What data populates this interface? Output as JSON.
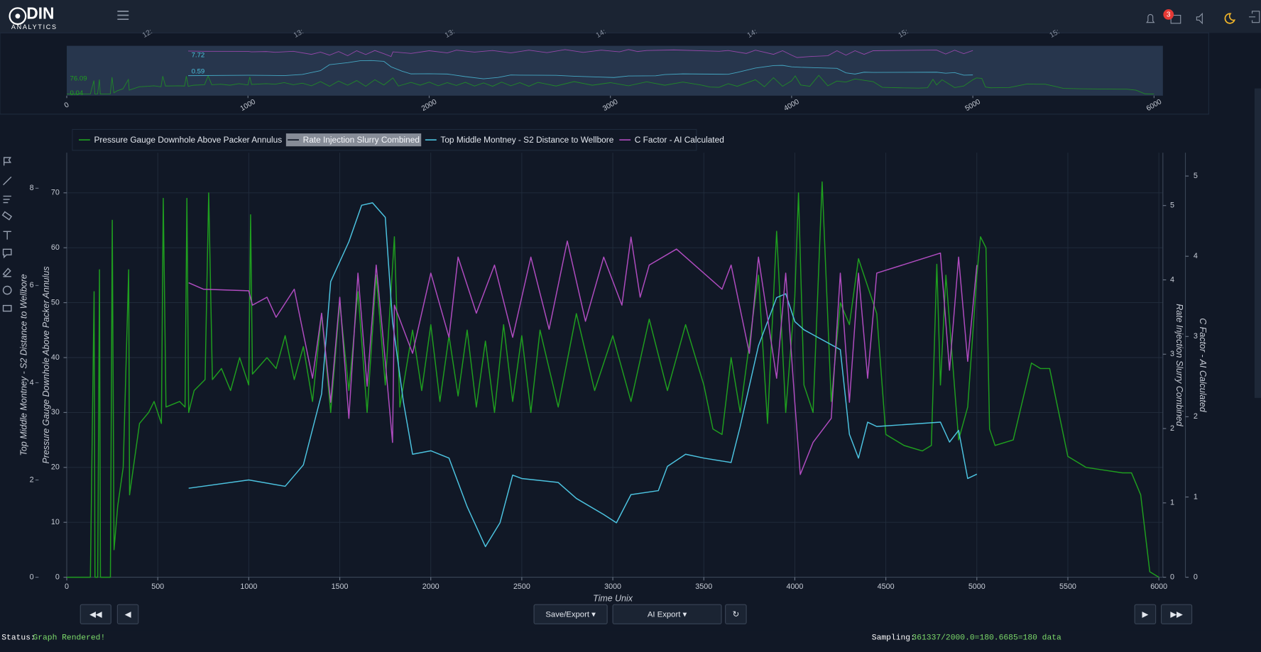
{
  "header": {
    "logo": "DIN",
    "subtitle": "ANALYTICS",
    "badge": "3"
  },
  "navigator": {
    "xlim": [
      0,
      6000
    ],
    "xticks": [
      0,
      1000,
      2000,
      3000,
      4000,
      5000,
      6000
    ],
    "top_labels": [
      "12:",
      "13:",
      "13:",
      "14:",
      "14:",
      "15:",
      "15:"
    ],
    "labels": [
      "7.72",
      "0.59",
      "76.09",
      "0.04"
    ]
  },
  "chart_data": {
    "type": "line",
    "xlabel": "Time Unix",
    "xlim": [
      0,
      6000
    ],
    "xticks": [
      0,
      500,
      1000,
      1500,
      2000,
      2500,
      3000,
      3500,
      4000,
      4500,
      5000,
      5500,
      6000
    ],
    "grid": true,
    "ylabel": "Pressure Gauge Downhole Above Packer Annulus",
    "ylim": [
      0,
      77.3
    ],
    "yticks": [
      0,
      10,
      20,
      30,
      40,
      50,
      60,
      70
    ],
    "y3label": "Top Middle Montney - S2 Distance to Wellbore",
    "y3lim": [
      0,
      8.73
    ],
    "y3ticks": [
      0,
      2,
      4,
      6,
      8
    ],
    "y2label": "Rate Injection Slurry Combined",
    "y2lim": [
      0,
      5.71
    ],
    "y2ticks": [
      0,
      1,
      2,
      3,
      4,
      5
    ],
    "y4label": "C Factor - AI Calculated",
    "y4lim": [
      0,
      5.29
    ],
    "y4ticks": [
      0,
      1,
      2,
      3,
      4,
      5
    ],
    "series": [
      {
        "name": "Pressure Gauge Downhole Above Packer Annulus",
        "color": "#1f9e1f",
        "axis": "y",
        "x": [
          0,
          130,
          150,
          155,
          170,
          180,
          185,
          240,
          250,
          260,
          280,
          310,
          340,
          345,
          400,
          450,
          480,
          520,
          530,
          545,
          620,
          650,
          660,
          670,
          700,
          760,
          780,
          800,
          850,
          900,
          950,
          1000,
          1010,
          1020,
          1100,
          1150,
          1200,
          1250,
          1300,
          1350,
          1400,
          1450,
          1500,
          1550,
          1600,
          1650,
          1700,
          1750,
          1800,
          1830,
          1900,
          1950,
          2000,
          2050,
          2100,
          2150,
          2200,
          2250,
          2300,
          2350,
          2400,
          2450,
          2500,
          2550,
          2600,
          2700,
          2800,
          2900,
          3000,
          3100,
          3200,
          3300,
          3400,
          3500,
          3550,
          3600,
          3650,
          3700,
          3800,
          3850,
          3900,
          3950,
          4000,
          4020,
          4050,
          4100,
          4150,
          4200,
          4250,
          4300,
          4350,
          4450,
          4500,
          4550,
          4600,
          4700,
          4750,
          4780,
          4800,
          4830,
          4900,
          4950,
          5000,
          5020,
          5050,
          5070,
          5100,
          5200,
          5300,
          5350,
          5400,
          5450,
          5500,
          5600,
          5700,
          5800,
          5850,
          5900,
          5950,
          6000
        ],
        "values": [
          0,
          0,
          52,
          0,
          0,
          56,
          0,
          0,
          65,
          5,
          13,
          20,
          56,
          15,
          28,
          30,
          32,
          28,
          69,
          31,
          32,
          31,
          69,
          30,
          34,
          36,
          70,
          36,
          38,
          34,
          40,
          35,
          66,
          37,
          40,
          38,
          44,
          36,
          42,
          32,
          48,
          30,
          50,
          34,
          52,
          30,
          55,
          35,
          62,
          31,
          45,
          34,
          46,
          32,
          44,
          33,
          45,
          31,
          43,
          30,
          46,
          32,
          44,
          30,
          45,
          31,
          48,
          34,
          44,
          32,
          47,
          34,
          46,
          35,
          27,
          26,
          40,
          30,
          55,
          28,
          63,
          30,
          51,
          70,
          35,
          30,
          72,
          32,
          50,
          46,
          58,
          48,
          26,
          25,
          24,
          23,
          24,
          57,
          35,
          55,
          25,
          31,
          55,
          62,
          60,
          27,
          24,
          25,
          39,
          38,
          38,
          30,
          22,
          20,
          19.5,
          19,
          19,
          15,
          1,
          0
        ]
      },
      {
        "name": "Rate Injection Slurry Combined",
        "color": "#c7ccd6",
        "axis": "y2",
        "visible": false
      },
      {
        "name": "Top Middle Montney - S2 Distance to Wellbore",
        "color": "#4cc3e0",
        "axis": "y3",
        "x": [
          670,
          1000,
          1200,
          1300,
          1400,
          1450,
          1550,
          1620,
          1680,
          1750,
          1790,
          1850,
          1900,
          2000,
          2100,
          2200,
          2300,
          2380,
          2450,
          2500,
          2700,
          2800,
          2950,
          3020,
          3100,
          3250,
          3300,
          3400,
          3500,
          3650,
          3700,
          3800,
          3900,
          3950,
          4000,
          4050,
          4250,
          4300,
          4350,
          4400,
          4450,
          4800,
          4850,
          4900,
          4950,
          5000
        ],
        "values": [
          1.83,
          2.0,
          1.87,
          2.31,
          3.77,
          6.08,
          6.9,
          7.65,
          7.7,
          7.4,
          5.26,
          3.6,
          2.53,
          2.6,
          2.45,
          1.45,
          0.63,
          1.12,
          2.1,
          2.03,
          1.95,
          1.62,
          1.29,
          1.12,
          1.7,
          1.78,
          2.28,
          2.53,
          2.45,
          2.36,
          3.1,
          4.76,
          5.75,
          5.83,
          5.26,
          5.09,
          4.68,
          2.94,
          2.45,
          3.19,
          3.1,
          3.19,
          2.78,
          3.02,
          2.03,
          2.12
        ]
      },
      {
        "name": "C Factor - AI Calculated",
        "color": "#b04cc0",
        "axis": "y4",
        "x": [
          670,
          750,
          1000,
          1020,
          1100,
          1150,
          1250,
          1350,
          1400,
          1450,
          1500,
          1550,
          1600,
          1650,
          1700,
          1750,
          1790,
          1800,
          1900,
          2000,
          2100,
          2150,
          2250,
          2350,
          2450,
          2550,
          2650,
          2750,
          2850,
          2950,
          3050,
          3100,
          3150,
          3200,
          3350,
          3600,
          3650,
          3750,
          3800,
          3900,
          3950,
          4000,
          4030,
          4100,
          4200,
          4250,
          4300,
          4350,
          4400,
          4450,
          4800,
          4850,
          4900,
          4950,
          5000
        ],
        "values": [
          3.67,
          3.59,
          3.57,
          3.39,
          3.49,
          3.24,
          3.59,
          2.48,
          3.29,
          2.18,
          3.49,
          1.98,
          3.79,
          2.38,
          3.89,
          2.69,
          1.68,
          3.39,
          2.79,
          3.79,
          2.99,
          3.99,
          3.29,
          3.89,
          2.99,
          3.99,
          3.09,
          4.19,
          3.19,
          3.99,
          3.39,
          4.24,
          3.49,
          3.89,
          4.09,
          3.59,
          3.89,
          2.79,
          3.99,
          2.48,
          3.79,
          2.18,
          1.28,
          1.68,
          1.98,
          3.79,
          2.18,
          3.79,
          2.48,
          3.79,
          4.04,
          2.58,
          3.99,
          2.69,
          3.89
        ]
      }
    ]
  },
  "controls": {
    "first": "◀◀",
    "prev": "◀",
    "save": "Save/Export ▾",
    "ai": "AI Export ▾",
    "refresh": "↻",
    "next": "▶",
    "last": "▶▶"
  },
  "status": {
    "label": "Status:",
    "value": "Graph Rendered!",
    "sampling_label": "Sampling:",
    "sampling": "361337/2000.0=180.6685=180 data"
  }
}
